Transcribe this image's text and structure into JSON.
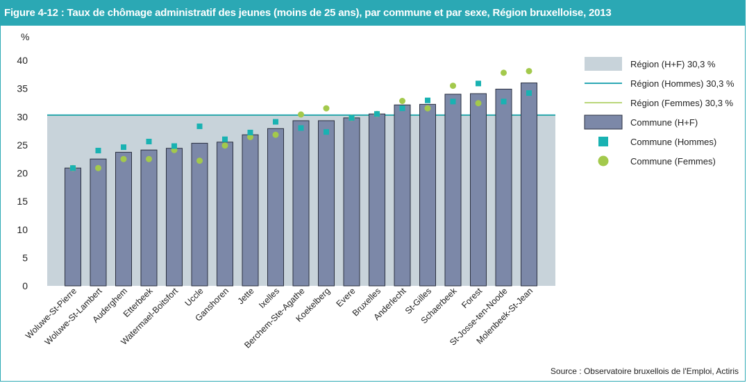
{
  "title": "Figure 4-12 :   Taux de chômage administratif des jeunes (moins de 25 ans), par commune et par sexe, Région bruxelloise, 2013",
  "source": "Source : Observatoire bruxellois de l'Emploi, Actiris",
  "colors": {
    "header": "#2ba8b4",
    "region_area": "#c8d3da",
    "bar": "#7c88a8",
    "bar_border": "#2a2f3f",
    "region_hommes_line": "#2ba8b4",
    "region_femmes_line": "#a2c94b",
    "hommes_marker": "#19b2b2",
    "femmes_marker": "#a3c94c"
  },
  "chart_data": {
    "type": "bar",
    "ylabel": "%",
    "ylim": [
      0,
      40
    ],
    "yticks": [
      "0",
      "5",
      "10",
      "15",
      "20",
      "25",
      "30",
      "35",
      "40"
    ],
    "grid": false,
    "legend_position": "right",
    "categories": [
      "Woluwe-St-Pierre",
      "Woluwe-St-Lambert",
      "Auderghem",
      "Etterbeek",
      "Watermael-Boitsfort",
      "Uccle",
      "Ganshoren",
      "Jette",
      "Ixelles",
      "Berchem-Ste-Agathe",
      "Koekelberg",
      "Evere",
      "Bruxelles",
      "Anderlecht",
      "St-Gilles",
      "Schaerbeek",
      "Forest",
      "St-Josse-ten-Noode",
      "Molenbeek-St-Jean"
    ],
    "series": [
      {
        "name": "Commune (H+F)",
        "kind": "bar",
        "values": [
          20.9,
          22.5,
          23.7,
          24.1,
          24.4,
          25.3,
          25.5,
          26.8,
          27.9,
          29.3,
          29.3,
          29.8,
          30.5,
          32.1,
          32.2,
          34.0,
          34.1,
          34.9,
          36.0
        ]
      },
      {
        "name": "Commune (Hommes)",
        "kind": "square",
        "values": [
          20.9,
          24.0,
          24.6,
          25.6,
          24.8,
          28.3,
          26.0,
          27.2,
          29.1,
          28.0,
          27.3,
          29.8,
          30.5,
          31.5,
          32.9,
          32.7,
          35.9,
          32.7,
          34.2
        ]
      },
      {
        "name": "Commune (Femmes)",
        "kind": "circle",
        "values": [
          20.9,
          20.9,
          22.5,
          22.5,
          24.1,
          22.2,
          24.9,
          26.4,
          26.8,
          30.4,
          31.5,
          29.8,
          30.5,
          32.8,
          31.5,
          35.5,
          32.4,
          37.8,
          38.1
        ]
      }
    ],
    "reference": {
      "region_hf": 30.3,
      "region_hommes": 30.3,
      "region_femmes": 30.3
    },
    "legend": [
      {
        "label": "Région (H+F) 30,3 %",
        "kind": "area"
      },
      {
        "label": "Région (Hommes) 30,3 %",
        "kind": "line-hommes"
      },
      {
        "label": "Région (Femmes)  30,3 %",
        "kind": "line-femmes"
      },
      {
        "label": "Commune (H+F)",
        "kind": "bar"
      },
      {
        "label": "Commune (Hommes)",
        "kind": "square"
      },
      {
        "label": "Commune (Femmes)",
        "kind": "circle"
      }
    ]
  }
}
